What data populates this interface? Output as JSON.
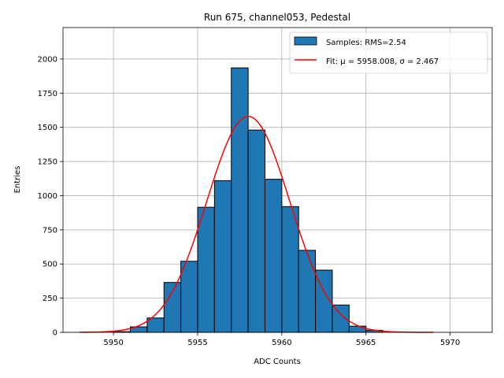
{
  "chart_data": {
    "type": "bar",
    "title": "Run 675, channel053, Pedestal",
    "xlabel": "ADC Counts",
    "ylabel": "Entries",
    "xlim": [
      5947,
      5972.5
    ],
    "ylim": [
      0,
      2230
    ],
    "xticks": [
      5950,
      5955,
      5960,
      5965,
      5970
    ],
    "yticks": [
      0,
      250,
      500,
      750,
      1000,
      1250,
      1500,
      1750,
      2000
    ],
    "grid": true,
    "legend_position": "top-right",
    "colors": {
      "bar_fill": "#1f77b4",
      "bar_edge": "#000000",
      "fit_line": "#ff0000"
    },
    "histogram": {
      "name": "Samples: RMS=2.54",
      "bin_edges": [
        5950,
        5951,
        5952,
        5953,
        5954,
        5955,
        5956,
        5957,
        5958,
        5959,
        5960,
        5961,
        5962,
        5963,
        5964,
        5965,
        5966
      ],
      "counts": [
        5,
        40,
        105,
        365,
        520,
        915,
        1110,
        1935,
        1480,
        1120,
        920,
        600,
        455,
        200,
        45,
        15
      ]
    },
    "fit": {
      "name": "Fit: μ = 5958.008, σ = 2.467",
      "mu": 5958.008,
      "sigma": 2.467,
      "amplitude": 1580,
      "x_range": [
        5948,
        5969
      ]
    }
  }
}
